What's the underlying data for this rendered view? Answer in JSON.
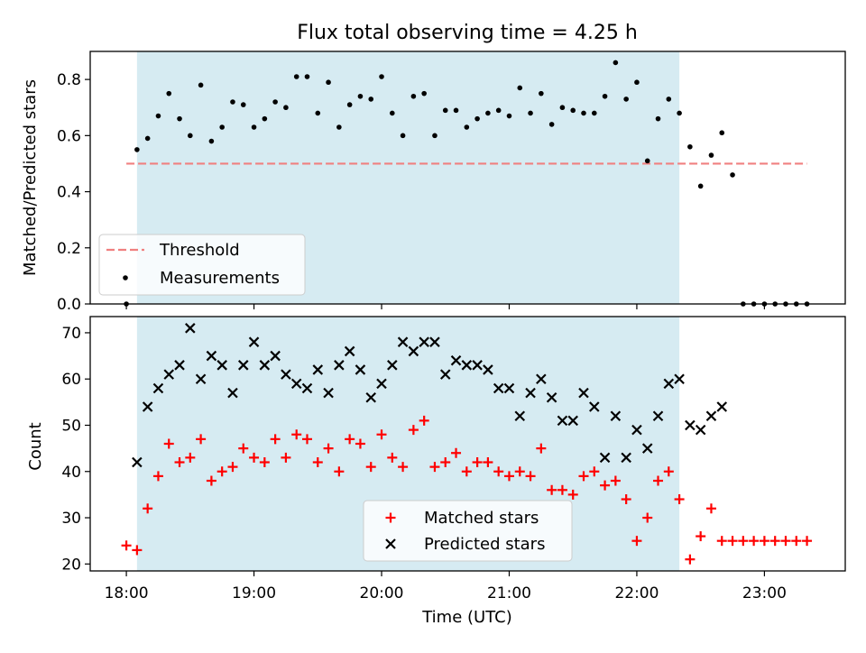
{
  "figure": {
    "title": "Flux total observing time = 4.25 h",
    "xlabel": "Time (UTC)"
  },
  "chart_data": [
    {
      "type": "scatter",
      "panel": "top",
      "ylabel": "Matched/Predicted stars",
      "ylim": [
        0,
        0.9
      ],
      "xlim": [
        "17:43",
        "23:38"
      ],
      "yticks": [
        "0.0",
        "0.2",
        "0.4",
        "0.6",
        "0.8"
      ],
      "xticks": [
        "18:00",
        "19:00",
        "20:00",
        "21:00",
        "22:00",
        "23:00"
      ],
      "observing_window": {
        "start": "18:05",
        "end": "22:20"
      },
      "threshold": {
        "name": "Threshold",
        "value": 0.5,
        "x_start": "18:00",
        "x_end": "23:20",
        "color": "#f08080"
      },
      "legend": {
        "position": "lower-left",
        "entries": [
          "Threshold",
          "Measurements"
        ]
      },
      "series": [
        {
          "name": "Measurements",
          "color": "#000000",
          "x": [
            "18:00",
            "18:05",
            "18:10",
            "18:15",
            "18:20",
            "18:25",
            "18:30",
            "18:35",
            "18:40",
            "18:45",
            "18:50",
            "18:55",
            "19:00",
            "19:05",
            "19:10",
            "19:15",
            "19:20",
            "19:25",
            "19:30",
            "19:35",
            "19:40",
            "19:45",
            "19:50",
            "19:55",
            "20:00",
            "20:05",
            "20:10",
            "20:15",
            "20:20",
            "20:25",
            "20:30",
            "20:35",
            "20:40",
            "20:45",
            "20:50",
            "20:55",
            "21:00",
            "21:05",
            "21:10",
            "21:15",
            "21:20",
            "21:25",
            "21:30",
            "21:35",
            "21:40",
            "21:45",
            "21:50",
            "21:55",
            "22:00",
            "22:05",
            "22:10",
            "22:15",
            "22:20",
            "22:25",
            "22:30",
            "22:35",
            "22:40",
            "22:45",
            "22:50",
            "22:55",
            "23:00",
            "23:05",
            "23:10",
            "23:15",
            "23:20"
          ],
          "y": [
            0.0,
            0.55,
            0.59,
            0.67,
            0.75,
            0.66,
            0.6,
            0.78,
            0.58,
            0.63,
            0.72,
            0.71,
            0.63,
            0.66,
            0.72,
            0.7,
            0.81,
            0.81,
            0.68,
            0.79,
            0.63,
            0.71,
            0.74,
            0.73,
            0.81,
            0.68,
            0.6,
            0.74,
            0.75,
            0.6,
            0.69,
            0.69,
            0.63,
            0.66,
            0.68,
            0.69,
            0.67,
            0.77,
            0.68,
            0.75,
            0.64,
            0.7,
            0.69,
            0.68,
            0.68,
            0.74,
            0.86,
            0.73,
            0.79,
            0.51,
            0.66,
            0.73,
            0.68,
            0.56,
            0.42,
            0.53,
            0.61,
            0.46,
            0.0,
            0.0,
            0.0,
            0.0,
            0.0,
            0.0,
            0.0
          ]
        }
      ]
    },
    {
      "type": "scatter",
      "panel": "bottom",
      "ylabel": "Count",
      "ylim": [
        18.5,
        73.5
      ],
      "yticks": [
        "20",
        "30",
        "40",
        "50",
        "60",
        "70"
      ],
      "xticks": [
        "18:00",
        "19:00",
        "20:00",
        "21:00",
        "22:00",
        "23:00"
      ],
      "observing_window": {
        "start": "18:05",
        "end": "22:20"
      },
      "legend": {
        "position": "lower-center",
        "entries": [
          "Matched stars",
          "Predicted stars"
        ]
      },
      "series": [
        {
          "name": "Matched stars",
          "marker": "+",
          "color": "#ff0000",
          "x": [
            "18:00",
            "18:05",
            "18:10",
            "18:15",
            "18:20",
            "18:25",
            "18:30",
            "18:35",
            "18:40",
            "18:45",
            "18:50",
            "18:55",
            "19:00",
            "19:05",
            "19:10",
            "19:15",
            "19:20",
            "19:25",
            "19:30",
            "19:35",
            "19:40",
            "19:45",
            "19:50",
            "19:55",
            "20:00",
            "20:05",
            "20:10",
            "20:15",
            "20:20",
            "20:25",
            "20:30",
            "20:35",
            "20:40",
            "20:45",
            "20:50",
            "20:55",
            "21:00",
            "21:05",
            "21:10",
            "21:15",
            "21:20",
            "21:25",
            "21:30",
            "21:35",
            "21:40",
            "21:45",
            "21:50",
            "21:55",
            "22:00",
            "22:05",
            "22:10",
            "22:15",
            "22:20",
            "22:25",
            "22:30",
            "22:35",
            "22:40",
            "22:45",
            "22:50",
            "22:55",
            "23:00",
            "23:05",
            "23:10",
            "23:15",
            "23:20"
          ],
          "y": [
            24,
            23,
            32,
            39,
            46,
            42,
            43,
            47,
            38,
            40,
            41,
            45,
            43,
            42,
            47,
            43,
            48,
            47,
            42,
            45,
            40,
            47,
            46,
            41,
            48,
            43,
            41,
            49,
            51,
            41,
            42,
            44,
            40,
            42,
            42,
            40,
            39,
            40,
            39,
            45,
            36,
            36,
            35,
            39,
            40,
            37,
            38,
            34,
            25,
            30,
            38,
            40,
            34,
            21,
            26,
            32,
            25,
            25,
            25,
            25,
            25,
            25,
            25,
            25,
            25
          ]
        },
        {
          "name": "Predicted stars",
          "marker": "x",
          "color": "#000000",
          "x": [
            "18:05",
            "18:10",
            "18:15",
            "18:20",
            "18:25",
            "18:30",
            "18:35",
            "18:40",
            "18:45",
            "18:50",
            "18:55",
            "19:00",
            "19:05",
            "19:10",
            "19:15",
            "19:20",
            "19:25",
            "19:30",
            "19:35",
            "19:40",
            "19:45",
            "19:50",
            "19:55",
            "20:00",
            "20:05",
            "20:10",
            "20:15",
            "20:20",
            "20:25",
            "20:30",
            "20:35",
            "20:40",
            "20:45",
            "20:50",
            "20:55",
            "21:00",
            "21:05",
            "21:10",
            "21:15",
            "21:20",
            "21:25",
            "21:30",
            "21:35",
            "21:40",
            "21:45",
            "21:50",
            "21:55",
            "22:00",
            "22:05",
            "22:10",
            "22:15",
            "22:20",
            "22:25",
            "22:30",
            "22:35",
            "22:40"
          ],
          "y": [
            42,
            54,
            58,
            61,
            63,
            71,
            60,
            65,
            63,
            57,
            63,
            68,
            63,
            65,
            61,
            59,
            58,
            62,
            57,
            63,
            66,
            62,
            56,
            59,
            63,
            68,
            66,
            68,
            68,
            61,
            64,
            63,
            63,
            62,
            58,
            58,
            52,
            57,
            60,
            56,
            51,
            51,
            57,
            54,
            43,
            52,
            43,
            49,
            45,
            52,
            59,
            60,
            50,
            49,
            52,
            54
          ]
        }
      ]
    }
  ]
}
